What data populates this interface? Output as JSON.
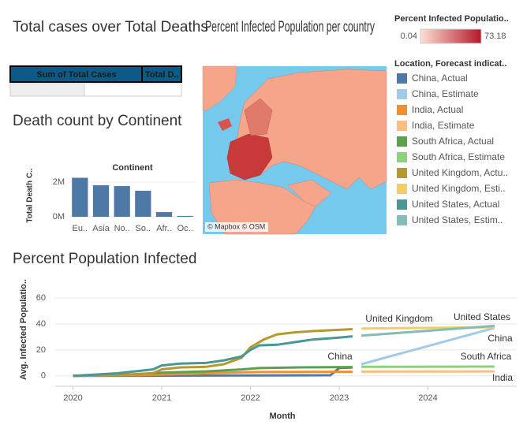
{
  "chart_data": [
    {
      "type": "table",
      "title": "Total cases over Total Deaths",
      "columns": [
        "Sum of Total Cases",
        "Total D.."
      ]
    },
    {
      "type": "bar",
      "title": "Death count by Continent",
      "x_label": "Continent",
      "y_label": "Total Death C..",
      "categories": [
        "Eu..",
        "Asia",
        "No..",
        "So..",
        "Afr..",
        "Oc.."
      ],
      "values": [
        2250000,
        1820000,
        1770000,
        1500000,
        270000,
        50000
      ],
      "color": "#4e79a7",
      "ylim": [
        0,
        2500000
      ],
      "yticks": [
        {
          "value": 0,
          "label": "0M"
        },
        {
          "value": 2000000,
          "label": "2M"
        }
      ],
      "grid": true
    },
    {
      "type": "map",
      "title": "Percent Infected Population per country",
      "legend_title": "Percent Infected Populatio..",
      "colorscale": {
        "min": 0.04,
        "max": 73.18,
        "colors": [
          "#fde0d5",
          "#b2182b"
        ]
      },
      "credit": "© Mapbox © OSM"
    },
    {
      "type": "line",
      "title": "Percent Population Infected",
      "x_label": "Month",
      "y_label": "Avg. Infected Populatio..",
      "legend_title": "Location, Forecast indicat..",
      "grid": true,
      "xlim": [
        2019.8,
        2025.0
      ],
      "xticks": [
        2020,
        2021,
        2022,
        2023,
        2024
      ],
      "ylim": [
        -8,
        77
      ],
      "yticks": [
        0,
        20,
        40,
        60
      ],
      "series": [
        {
          "name": "China, Actual",
          "color": "#4e79a7",
          "x": [
            2020,
            2022.9,
            2023.0,
            2023.15
          ],
          "values": [
            0,
            0.5,
            6,
            6.5
          ]
        },
        {
          "name": "China, Estimate",
          "color": "#a0cbe8",
          "x": [
            2023.25,
            2024.75
          ],
          "values": [
            9,
            37
          ]
        },
        {
          "name": "India, Actual",
          "color": "#f28e2b",
          "x": [
            2020,
            2020.7,
            2021.3,
            2021.6,
            2022.1,
            2023.15
          ],
          "values": [
            0,
            0.7,
            1.5,
            2.3,
            3,
            3.2
          ]
        },
        {
          "name": "India, Estimate",
          "color": "#ffbe7d",
          "x": [
            2023.25,
            2024.75
          ],
          "values": [
            3.3,
            3.5
          ]
        },
        {
          "name": "South Africa, Actual",
          "color": "#59a14f",
          "x": [
            2020,
            2020.6,
            2021.0,
            2021.5,
            2021.9,
            2022.1,
            2022.5,
            2023.15
          ],
          "values": [
            0,
            1,
            2.5,
            3.5,
            5,
            6,
            6.5,
            6.8
          ]
        },
        {
          "name": "South Africa, Estimate",
          "color": "#8cd17d",
          "x": [
            2023.25,
            2024.75
          ],
          "values": [
            7,
            7.2
          ]
        },
        {
          "name": "United Kingdom, Actu..",
          "color": "#b6992d",
          "x": [
            2020,
            2020.5,
            2020.9,
            2021.0,
            2021.2,
            2021.5,
            2021.7,
            2021.9,
            2022.0,
            2022.15,
            2022.3,
            2022.5,
            2022.7,
            2023.0,
            2023.15
          ],
          "values": [
            0,
            0.5,
            2,
            5,
            6.5,
            7,
            9,
            14,
            22,
            28,
            32,
            33.5,
            34.5,
            35.5,
            36
          ]
        },
        {
          "name": "United Kingdom, Esti..",
          "color": "#f1ce63",
          "x": [
            2023.25,
            2024.75
          ],
          "values": [
            36.5,
            37.5
          ]
        },
        {
          "name": "United States, Actual",
          "color": "#499894",
          "x": [
            2020,
            2020.5,
            2020.9,
            2021.0,
            2021.2,
            2021.5,
            2021.7,
            2021.9,
            2022.0,
            2022.1,
            2022.3,
            2022.5,
            2022.7,
            2023.0,
            2023.15
          ],
          "values": [
            0,
            2,
            5,
            8,
            9.5,
            10,
            12,
            15,
            20,
            23.5,
            24,
            26,
            28,
            29.5,
            30.5
          ]
        },
        {
          "name": "United States, Estim..",
          "color": "#86bcb6",
          "x": [
            2023.25,
            2024.75
          ],
          "values": [
            31,
            38.5
          ]
        }
      ],
      "annotations": [
        "United Kingdom",
        "United States",
        "China",
        "China",
        "South Africa",
        "India"
      ]
    }
  ]
}
